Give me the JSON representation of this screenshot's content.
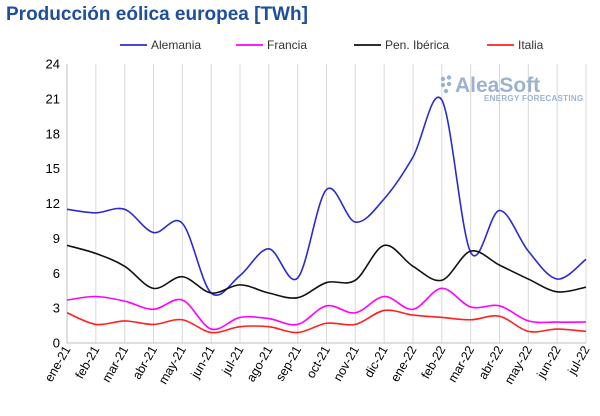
{
  "title": "Producción eólica europea [TWh]",
  "logo": {
    "name": "AleaSoft",
    "tagline": "ENERGY FORECASTING",
    "color": "#9cb3cf"
  },
  "chart_data": {
    "type": "line",
    "title": "Producción eólica europea [TWh]",
    "xlabel": "",
    "ylabel": "",
    "categories": [
      "ene-21",
      "feb-21",
      "mar-21",
      "abr-21",
      "may-21",
      "jun-21",
      "jul-21",
      "ago-21",
      "sep-21",
      "oct-21",
      "nov-21",
      "dic-21",
      "ene-22",
      "feb-22",
      "mar-22",
      "abr-22",
      "may-22",
      "jun-22",
      "jul-22"
    ],
    "ylim": [
      0,
      24
    ],
    "yticks": [
      0,
      3,
      6,
      9,
      12,
      15,
      18,
      21,
      24
    ],
    "grid": {
      "vertical": true,
      "horizontal": false
    },
    "legend_position": "top",
    "series": [
      {
        "name": "Alemania",
        "color": "#2b2bcc",
        "values": [
          11.5,
          11.2,
          11.5,
          9.5,
          10.3,
          4.3,
          5.8,
          8.1,
          5.6,
          13.2,
          10.4,
          12.4,
          16.0,
          20.9,
          7.8,
          11.4,
          7.9,
          5.5,
          7.2
        ]
      },
      {
        "name": "Francia",
        "color": "#ff00ff",
        "values": [
          3.7,
          4.0,
          3.6,
          2.9,
          3.7,
          1.2,
          2.2,
          2.1,
          1.6,
          3.2,
          2.6,
          4.0,
          2.9,
          4.7,
          3.1,
          3.2,
          1.9,
          1.8,
          1.8
        ]
      },
      {
        "name": "Pen. Ibérica",
        "color": "#111111",
        "values": [
          8.4,
          7.7,
          6.6,
          4.7,
          5.7,
          4.3,
          5.0,
          4.3,
          3.9,
          5.2,
          5.4,
          8.4,
          6.6,
          5.4,
          7.9,
          6.7,
          5.5,
          4.4,
          4.8
        ]
      },
      {
        "name": "Italia",
        "color": "#ff2020",
        "values": [
          2.6,
          1.6,
          1.9,
          1.6,
          2.0,
          0.9,
          1.4,
          1.4,
          0.9,
          1.7,
          1.6,
          2.8,
          2.4,
          2.2,
          2.0,
          2.3,
          1.0,
          1.2,
          1.0
        ]
      }
    ]
  }
}
